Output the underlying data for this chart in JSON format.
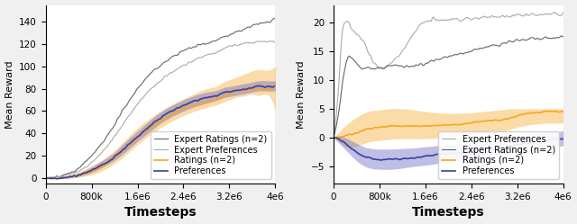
{
  "fig_width": 6.4,
  "fig_height": 2.49,
  "dpi": 100,
  "background_color": "#f0f0f0",
  "axes_background": "#ffffff",
  "left_plot": {
    "xlim": [
      0,
      4000000
    ],
    "ylim": [
      -5,
      155
    ],
    "yticks": [
      0,
      20,
      40,
      60,
      80,
      100,
      120,
      140
    ],
    "ylabel": "Mean Reward",
    "xlabel": "Timesteps",
    "ratings_color": "#f5a623",
    "prefs_color": "#3d3d9e",
    "prefs_fill_color": "#7070c8",
    "expert_ratings_color": "#666666",
    "expert_prefs_color": "#aaaaaa",
    "ratings_mean": [
      0,
      0,
      0,
      1,
      3,
      6,
      11,
      18,
      27,
      36,
      44,
      51,
      57,
      62,
      65,
      68,
      71,
      73,
      75,
      77,
      78,
      79,
      80,
      80,
      80,
      80
    ],
    "ratings_lo": [
      0,
      0,
      0,
      0,
      1,
      3,
      7,
      13,
      21,
      30,
      38,
      45,
      51,
      56,
      60,
      63,
      66,
      68,
      70,
      72,
      73,
      74,
      75,
      74,
      73,
      60
    ],
    "ratings_hi": [
      0,
      0,
      0,
      2,
      6,
      11,
      17,
      25,
      35,
      45,
      53,
      60,
      66,
      71,
      76,
      80,
      83,
      86,
      88,
      90,
      92,
      94,
      96,
      97,
      97,
      100
    ],
    "prefs_mean": [
      0,
      0,
      0,
      1,
      3,
      7,
      12,
      19,
      28,
      37,
      46,
      54,
      60,
      65,
      69,
      72,
      74,
      76,
      77,
      78,
      79,
      80,
      81,
      82,
      82,
      82
    ],
    "prefs_lo": [
      0,
      0,
      0,
      0,
      2,
      5,
      10,
      16,
      24,
      33,
      41,
      49,
      55,
      60,
      64,
      67,
      70,
      72,
      73,
      74,
      75,
      76,
      77,
      78,
      78,
      78
    ],
    "prefs_hi": [
      0,
      0,
      0,
      2,
      5,
      10,
      16,
      23,
      33,
      42,
      51,
      59,
      65,
      70,
      74,
      77,
      79,
      81,
      82,
      83,
      84,
      85,
      86,
      87,
      87,
      87
    ],
    "expert_ratings": [
      0,
      0,
      1,
      4,
      10,
      20,
      32,
      48,
      65,
      80,
      92,
      101,
      108,
      114,
      118,
      121,
      124,
      126,
      128,
      130,
      132,
      134,
      136,
      138,
      140,
      142
    ],
    "expert_prefs": [
      0,
      0,
      1,
      3,
      7,
      14,
      24,
      37,
      52,
      66,
      78,
      87,
      95,
      101,
      106,
      110,
      113,
      116,
      118,
      119,
      120,
      121,
      121,
      122,
      122,
      122
    ],
    "x_vals": [
      0,
      100000,
      200000,
      400000,
      600000,
      800000,
      1000000,
      1200000,
      1400000,
      1600000,
      1800000,
      2000000,
      2200000,
      2400000,
      2600000,
      2800000,
      3000000,
      3100000,
      3200000,
      3300000,
      3400000,
      3500000,
      3600000,
      3700000,
      3900000,
      4000000
    ]
  },
  "right_plot": {
    "xlim": [
      0,
      4000000
    ],
    "ylim": [
      -8,
      23
    ],
    "yticks": [
      -5,
      0,
      5,
      10,
      15,
      20
    ],
    "ylabel": "Mean Reward",
    "xlabel": "Timesteps",
    "ratings_color": "#f5a623",
    "prefs_color": "#3d3d9e",
    "prefs_fill_color": "#7070c8",
    "expert_ratings_color": "#666666",
    "expert_prefs_color": "#aaaaaa",
    "ratings_mean": [
      0,
      0.1,
      0.3,
      0.8,
      1.5,
      1.8,
      2.0,
      2.0,
      2.0,
      2.0,
      2.1,
      2.2,
      2.3,
      2.5,
      2.8,
      3.0,
      3.2,
      3.5,
      3.8,
      4.0,
      4.2,
      4.3,
      4.4,
      4.5,
      4.5,
      4.5
    ],
    "ratings_lo": [
      0,
      -0.8,
      -1.5,
      -1.5,
      -0.8,
      -0.5,
      -0.3,
      -0.2,
      -0.2,
      -0.2,
      -0.1,
      0.0,
      0.2,
      0.5,
      0.8,
      1.0,
      1.2,
      1.5,
      1.8,
      2.0,
      2.2,
      2.3,
      2.4,
      2.5,
      2.5,
      2.5
    ],
    "ratings_hi": [
      0,
      1.0,
      2.0,
      3.5,
      4.5,
      4.8,
      5.0,
      5.0,
      4.8,
      4.5,
      4.3,
      4.2,
      4.2,
      4.3,
      4.5,
      4.7,
      4.9,
      5.0,
      5.0,
      5.0,
      5.0,
      5.0,
      5.0,
      5.0,
      5.0,
      5.0
    ],
    "prefs_mean": [
      0,
      -0.3,
      -1.0,
      -2.5,
      -3.5,
      -3.8,
      -3.8,
      -3.7,
      -3.5,
      -3.3,
      -3.0,
      -2.8,
      -2.6,
      -2.4,
      -2.2,
      -2.0,
      -1.8,
      -1.5,
      -1.3,
      -1.1,
      -1.0,
      -0.8,
      -0.6,
      -0.5,
      -0.3,
      -0.2
    ],
    "prefs_lo": [
      0,
      -1.0,
      -2.0,
      -4.0,
      -5.2,
      -5.5,
      -5.5,
      -5.3,
      -5.0,
      -4.8,
      -4.5,
      -4.2,
      -4.0,
      -3.8,
      -3.5,
      -3.3,
      -3.0,
      -2.8,
      -2.5,
      -2.3,
      -2.2,
      -2.0,
      -1.8,
      -1.6,
      -1.5,
      -1.4
    ],
    "prefs_hi": [
      0,
      0.3,
      0.0,
      -1.0,
      -1.8,
      -2.0,
      -2.0,
      -1.9,
      -1.8,
      -1.6,
      -1.4,
      -1.2,
      -1.0,
      -0.8,
      -0.6,
      -0.4,
      -0.2,
      0.0,
      0.2,
      0.4,
      0.5,
      0.6,
      0.8,
      0.9,
      1.0,
      1.2
    ],
    "expert_ratings_x": [
      0,
      50000,
      100000,
      150000,
      200000,
      250000,
      300000,
      400000,
      500000,
      600000,
      700000,
      800000,
      1000000,
      1200000,
      1400000,
      1600000,
      1800000,
      2000000,
      2400000,
      2800000,
      3200000,
      3600000,
      4000000
    ],
    "expert_ratings_y": [
      0,
      2,
      5,
      9,
      12,
      14,
      14,
      13,
      12,
      12,
      12,
      12,
      12.5,
      12.5,
      12.5,
      12.8,
      13.5,
      14.0,
      15.0,
      16.0,
      16.8,
      17.2,
      17.5
    ],
    "expert_prefs_x": [
      0,
      30000,
      60000,
      100000,
      150000,
      200000,
      250000,
      300000,
      400000,
      500000,
      600000,
      700000,
      800000,
      1000000,
      1200000,
      1400000,
      1600000,
      1800000,
      2000000,
      2400000,
      2800000,
      3200000,
      3600000,
      4000000
    ],
    "expert_prefs_y": [
      0,
      2,
      5,
      10,
      18,
      20,
      20,
      19,
      18,
      17,
      15,
      13,
      12,
      13,
      15,
      18,
      20,
      20.5,
      20.5,
      20.8,
      21.0,
      21.2,
      21.3,
      21.5
    ],
    "x_vals": [
      0,
      100000,
      200000,
      400000,
      600000,
      800000,
      1000000,
      1200000,
      1400000,
      1600000,
      1800000,
      2000000,
      2200000,
      2400000,
      2600000,
      2800000,
      3000000,
      3100000,
      3200000,
      3300000,
      3400000,
      3500000,
      3600000,
      3700000,
      3900000,
      4000000
    ]
  },
  "legend": {
    "ratings_label": "Ratings (n=2)",
    "prefs_label": "Preferences",
    "expert_ratings_label": "Expert Ratings (n=2)",
    "expert_prefs_label": "Expert Preferences",
    "fontsize": 7.0
  },
  "tick_fontsize": 7.5,
  "xlabel_fontsize": 10,
  "ylabel_fontsize": 8,
  "xticks": [
    0,
    800000,
    1600000,
    2400000,
    3200000,
    4000000
  ],
  "xtick_labels": [
    "0",
    "800k",
    "1.6e6",
    "2.4e6",
    "3.2e6",
    "4e6"
  ]
}
